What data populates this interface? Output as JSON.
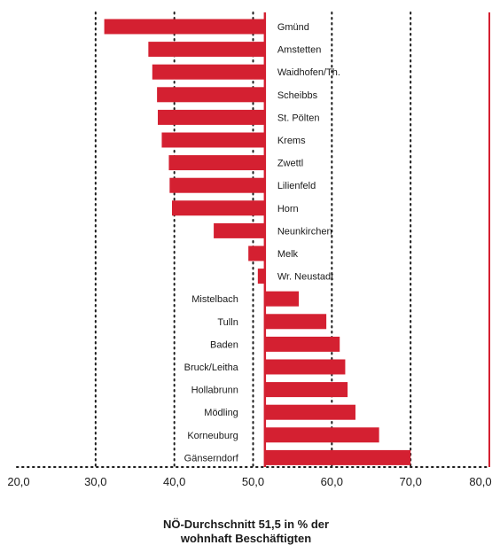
{
  "chart_data": {
    "type": "bar",
    "orientation": "horizontal",
    "baseline": 51.5,
    "categories": [
      "Gmünd",
      "Amstetten",
      "Waidhofen/Th.",
      "Scheibbs",
      "St. Pölten",
      "Krems",
      "Zwettl",
      "Lilienfeld",
      "Horn",
      "Neunkirchen",
      "Melk",
      "Wr. Neustadt",
      "Mistelbach",
      "Tulln",
      "Baden",
      "Bruck/Leitha",
      "Hollabrunn",
      "Mödling",
      "Korneuburg",
      "Gänserndorf"
    ],
    "values": [
      31.1,
      36.7,
      37.2,
      37.8,
      37.9,
      38.4,
      39.3,
      39.4,
      39.7,
      45.0,
      49.4,
      50.6,
      55.8,
      59.3,
      61.0,
      61.7,
      62.0,
      63.0,
      66.0,
      70.0
    ],
    "xlim": [
      20,
      80
    ],
    "x_ticks": [
      "20,0",
      "30,0",
      "40,0",
      "50,0",
      "60,0",
      "70,0",
      "80,0"
    ],
    "grid": "vertical dotted",
    "colors": {
      "bar": "#d42031",
      "average_line": "#d42031",
      "grid": "#1a1a1a"
    }
  },
  "footnote": {
    "line1": "NÖ-Durchschnitt 51,5 in % der",
    "line2": "wohnhaft Beschäftigten"
  }
}
